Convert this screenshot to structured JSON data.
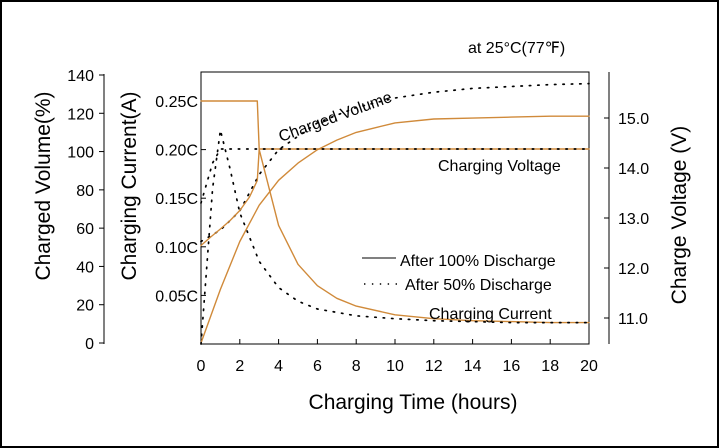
{
  "chart_data": {
    "type": "line",
    "title": "",
    "condition": "at 25°C(77℉)",
    "xlabel": "Charging Time (hours)",
    "xlim": [
      0,
      20
    ],
    "x_ticks": [
      0,
      2,
      4,
      6,
      8,
      10,
      12,
      14,
      16,
      18,
      20
    ],
    "y_axes": {
      "volume": {
        "label": "Charged Volume(%)",
        "lim": [
          0,
          140
        ],
        "ticks": [
          "0",
          "20",
          "40",
          "60",
          "80",
          "100",
          "120",
          "140"
        ],
        "tick_values": [
          0,
          20,
          40,
          60,
          80,
          100,
          120,
          140
        ]
      },
      "current": {
        "label": "Charging Current(A)",
        "lim": [
          0,
          0.28
        ],
        "ticks": [
          "0.05C",
          "0.10C",
          "0.15C",
          "0.20C",
          "0.25C"
        ],
        "tick_values": [
          0.05,
          0.1,
          0.15,
          0.2,
          0.25
        ]
      },
      "voltage": {
        "label": "Charge Voltage (V)",
        "lim": [
          10.4,
          15.8
        ],
        "ticks": [
          "11.0",
          "12.0",
          "13.0",
          "14.0",
          "15.0"
        ],
        "tick_values": [
          11.0,
          12.0,
          13.0,
          14.0,
          15.0
        ]
      }
    },
    "grid": false,
    "legend": {
      "placement": "center-right",
      "entries": [
        {
          "label": "After 100% Discharge",
          "style": "solid"
        },
        {
          "label": "After 50% Discharge",
          "style": "dotted"
        }
      ]
    },
    "annotations": {
      "charged_volume": "Charged Volume",
      "charging_voltage": "Charging Voltage",
      "charging_current": "Charging Current"
    },
    "line_color": "#d08a3a",
    "series": [
      {
        "curve": "charged-volume",
        "discharge": "100%",
        "axis": "volume",
        "style": "solid",
        "x": [
          0,
          1,
          2,
          3,
          4,
          5,
          6,
          7,
          8,
          10,
          12,
          14,
          16,
          18,
          20
        ],
        "y": [
          0,
          28,
          53,
          72,
          85,
          94,
          101,
          106,
          110,
          115,
          117,
          117.5,
          118,
          118.5,
          118.5
        ]
      },
      {
        "curve": "charged-volume",
        "discharge": "50%",
        "axis": "volume",
        "style": "dotted",
        "x": [
          0,
          1,
          2,
          3,
          4,
          6,
          8,
          10,
          12,
          14,
          16,
          18,
          20
        ],
        "y": [
          53,
          59,
          69,
          88,
          101,
          115,
          123,
          128,
          131,
          133,
          134,
          135,
          135.5
        ]
      },
      {
        "curve": "charging-current",
        "discharge": "100%",
        "axis": "current",
        "style": "solid",
        "x": [
          0,
          2.9,
          3.0,
          4,
          5,
          6,
          7,
          8,
          10,
          12,
          14,
          16,
          18,
          20
        ],
        "y": [
          0.25,
          0.25,
          0.2,
          0.122,
          0.082,
          0.06,
          0.047,
          0.039,
          0.03,
          0.026,
          0.024,
          0.023,
          0.022,
          0.022
        ]
      },
      {
        "curve": "charging-current",
        "discharge": "50%",
        "axis": "current",
        "style": "dotted",
        "x": [
          0,
          0.6,
          1.0,
          1.5,
          2,
          3,
          4,
          5,
          6,
          8,
          10,
          12,
          14,
          16,
          18,
          20
        ],
        "y": [
          0,
          0.16,
          0.22,
          0.18,
          0.135,
          0.085,
          0.058,
          0.044,
          0.036,
          0.029,
          0.026,
          0.024,
          0.023,
          0.022,
          0.022,
          0.022
        ]
      },
      {
        "curve": "charging-voltage",
        "discharge": "100%",
        "axis": "voltage",
        "style": "solid",
        "x": [
          0,
          0.5,
          1,
          1.5,
          2,
          2.5,
          2.9,
          3.0,
          4,
          6,
          8,
          10,
          12,
          14,
          16,
          18,
          20
        ],
        "y": [
          12.45,
          12.62,
          12.78,
          12.95,
          13.15,
          13.42,
          13.75,
          14.38,
          14.38,
          14.38,
          14.38,
          14.38,
          14.38,
          14.38,
          14.38,
          14.38,
          14.38
        ]
      },
      {
        "curve": "charging-voltage",
        "discharge": "50%",
        "axis": "voltage",
        "style": "dotted",
        "x": [
          0,
          0.3,
          0.6,
          1.0,
          1.2,
          2,
          4,
          6,
          8,
          10,
          12,
          14,
          16,
          18,
          20
        ],
        "y": [
          13.3,
          13.7,
          14.1,
          14.38,
          14.38,
          14.38,
          14.38,
          14.38,
          14.38,
          14.38,
          14.38,
          14.38,
          14.38,
          14.38,
          14.38
        ]
      }
    ]
  }
}
